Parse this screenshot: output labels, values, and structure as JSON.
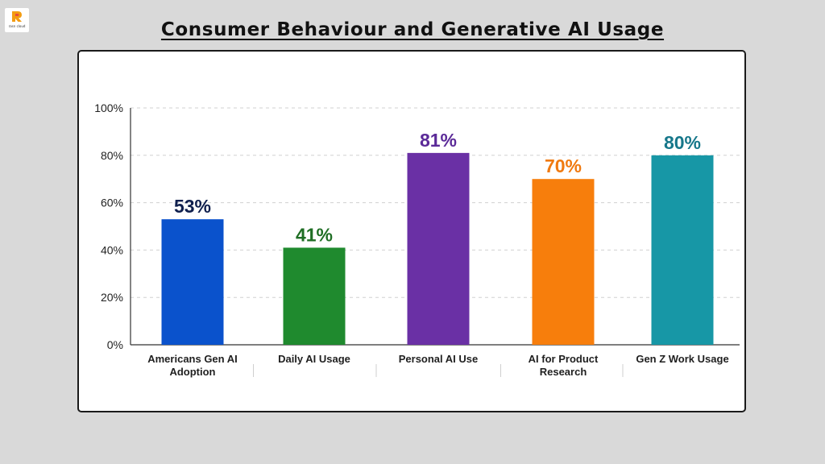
{
  "brand": {
    "logo_text": "rasn cloud",
    "logo_colors": [
      "#f39c12",
      "#e74c3c"
    ]
  },
  "title": "Consumer Behaviour and Generative AI Usage",
  "chart_data": {
    "type": "bar",
    "title": "Consumer Behaviour and Generative AI Usage",
    "xlabel": "",
    "ylabel": "",
    "categories": [
      [
        "Americans Gen AI",
        "Adoption"
      ],
      [
        "Daily AI Usage"
      ],
      [
        "Personal AI Use"
      ],
      [
        "AI for Product",
        "Research"
      ],
      [
        "Gen Z Work Usage"
      ]
    ],
    "values": [
      53,
      41,
      81,
      70,
      80
    ],
    "data_labels": [
      "53%",
      "41%",
      "81%",
      "70%",
      "80%"
    ],
    "bar_colors": [
      "#0a52cc",
      "#1f8a2e",
      "#6a30a5",
      "#f77e0c",
      "#1797a6"
    ],
    "label_colors": [
      "#0f1f4d",
      "#1f6e24",
      "#5b2a98",
      "#f07a10",
      "#16778a"
    ],
    "ylim": [
      0,
      100
    ],
    "yticks": [
      0,
      20,
      40,
      60,
      80,
      100
    ],
    "ytick_labels": [
      "0%",
      "20%",
      "40%",
      "60%",
      "80%",
      "100%"
    ],
    "grid": true,
    "legend": "none"
  }
}
